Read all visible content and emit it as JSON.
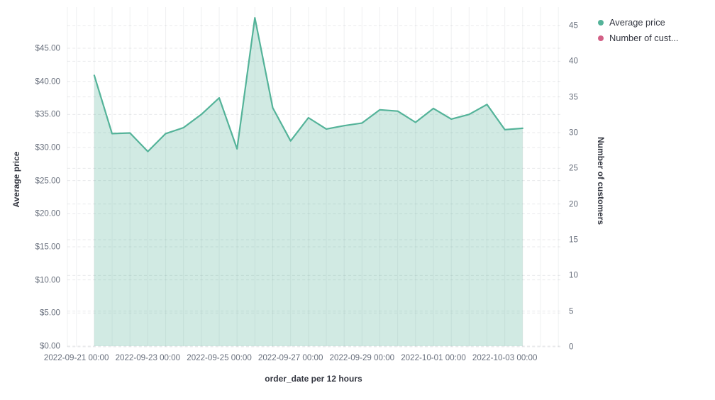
{
  "chart_data": {
    "type": "area",
    "title": "",
    "xlabel": "order_date per 12 hours",
    "ylabel_left": "Average price",
    "ylabel_right": "Number of customers",
    "grid": true,
    "x_interval": "12 hours",
    "left_axis": {
      "ticks": [
        "$0.00",
        "$5.00",
        "$10.00",
        "$15.00",
        "$20.00",
        "$25.00",
        "$30.00",
        "$35.00",
        "$40.00",
        "$45.00"
      ],
      "values": [
        0,
        5,
        10,
        15,
        20,
        25,
        30,
        35,
        40,
        45
      ],
      "range_shown": [
        0,
        45
      ]
    },
    "right_axis": {
      "ticks": [
        "0",
        "5",
        "10",
        "15",
        "20",
        "25",
        "30",
        "35",
        "40",
        "45"
      ],
      "values": [
        0,
        5,
        10,
        15,
        20,
        25,
        30,
        35,
        40,
        45
      ],
      "range_shown": [
        0,
        45
      ]
    },
    "x_axis": {
      "tick_labels": [
        "2022-09-21 00:00",
        "2022-09-23 00:00",
        "2022-09-25 00:00",
        "2022-09-27 00:00",
        "2022-09-29 00:00",
        "2022-10-01 00:00",
        "2022-10-03 00:00"
      ],
      "ticks_every_n_buckets": 4
    },
    "series": [
      {
        "name": "Average price",
        "axis": "left",
        "color": "#54b399",
        "x": [
          "2022-09-21 12:00",
          "2022-09-22 00:00",
          "2022-09-22 12:00",
          "2022-09-23 00:00",
          "2022-09-23 12:00",
          "2022-09-24 00:00",
          "2022-09-24 12:00",
          "2022-09-25 00:00",
          "2022-09-25 12:00",
          "2022-09-26 00:00",
          "2022-09-26 12:00",
          "2022-09-27 00:00",
          "2022-09-27 12:00",
          "2022-09-28 00:00",
          "2022-09-28 12:00",
          "2022-09-29 00:00",
          "2022-09-29 12:00",
          "2022-09-30 00:00",
          "2022-09-30 12:00",
          "2022-10-01 00:00",
          "2022-10-01 12:00",
          "2022-10-02 00:00",
          "2022-10-02 12:00",
          "2022-10-03 00:00",
          "2022-10-03 12:00"
        ],
        "values": [
          40.9,
          32.1,
          32.2,
          29.4,
          32.1,
          33.0,
          35.0,
          37.5,
          29.8,
          49.6,
          36.0,
          31.0,
          34.5,
          32.8,
          33.3,
          33.7,
          35.7,
          35.5,
          33.8,
          35.9,
          34.3,
          35.0,
          36.5,
          32.7,
          32.9
        ]
      },
      {
        "name": "Number of cust...",
        "full_axis_title": "Number of customers",
        "axis": "right",
        "color": "#d36086",
        "values": []
      }
    ],
    "legend": {
      "position": "top-right",
      "items": [
        {
          "label": "Average price",
          "color": "#54b399"
        },
        {
          "label": "Number of cust...",
          "color": "#d36086"
        }
      ]
    }
  }
}
